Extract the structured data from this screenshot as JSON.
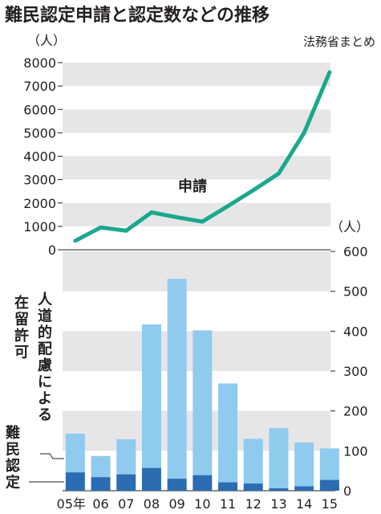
{
  "chart_data": {
    "title": "難民認定申請と認定数などの推移",
    "source": "法務省まとめ",
    "categories": [
      "05年",
      "06",
      "07",
      "08",
      "09",
      "10",
      "11",
      "12",
      "13",
      "14",
      "15"
    ],
    "applications": {
      "type": "line",
      "name": "申請",
      "unit": "（人）",
      "values": [
        384,
        954,
        816,
        1599,
        1388,
        1202,
        1867,
        2545,
        3260,
        5000,
        7586
      ],
      "ylim": [
        0,
        8000
      ],
      "yticks": [
        "0",
        "1000",
        "2000",
        "3000",
        "4000",
        "5000",
        "6000",
        "7000",
        "8000"
      ],
      "color": "#1aa88e"
    },
    "approvals": {
      "type": "bar",
      "unit": "（人）",
      "ylim": [
        0,
        600
      ],
      "yticks": [
        "0",
        "100",
        "200",
        "300",
        "400",
        "500",
        "600"
      ],
      "series": [
        {
          "name": "難民認定",
          "values": [
            46,
            34,
            41,
            57,
            30,
            39,
            21,
            18,
            6,
            11,
            27
          ],
          "color": "#2b6cb3"
        },
        {
          "name": "人道的配慮による在留許可",
          "values": [
            97,
            53,
            88,
            360,
            501,
            363,
            248,
            112,
            151,
            110,
            79
          ],
          "color": "#8fcbee"
        }
      ]
    },
    "labels": {
      "line_label": "申請",
      "humanitarian_col1": "在留許可",
      "humanitarian_col2": "人道的配慮による",
      "refugee": "難民認定"
    },
    "band_color": "#e6e6e6"
  }
}
